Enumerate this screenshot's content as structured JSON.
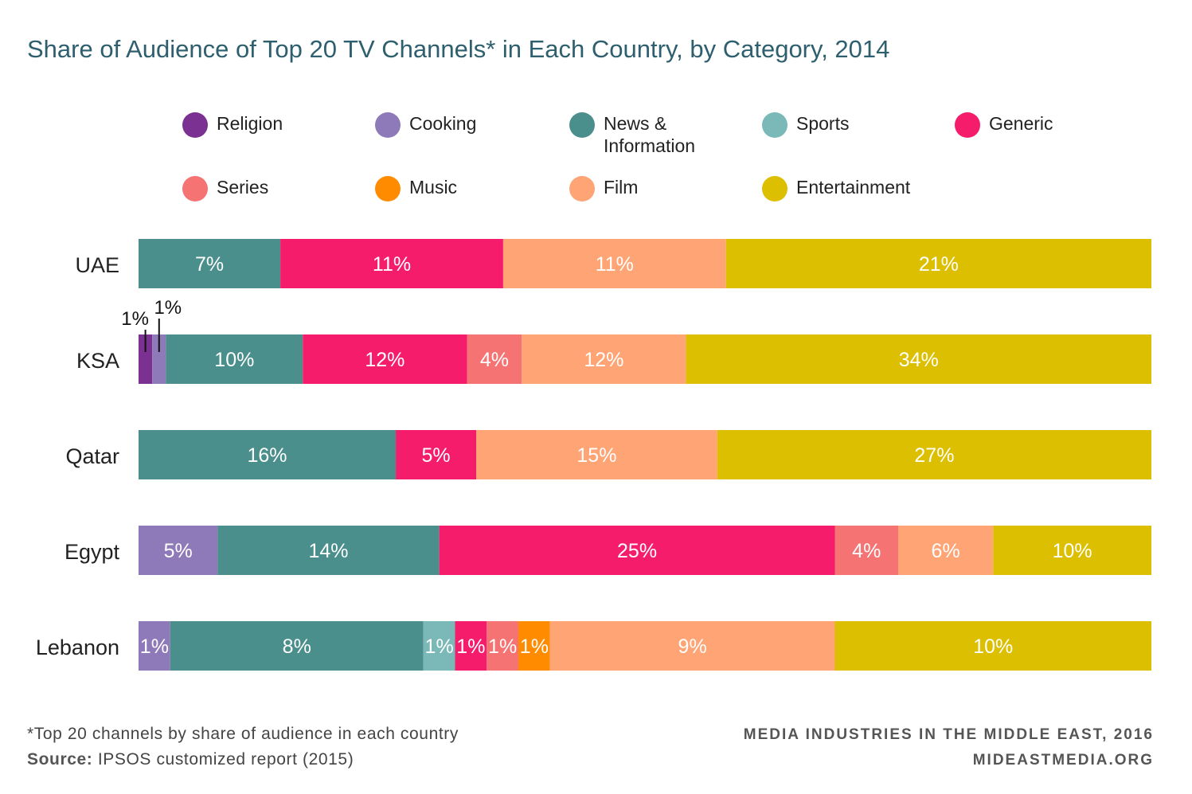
{
  "chart_data": {
    "type": "bar",
    "orientation": "horizontal",
    "stacked": true,
    "title": "Share of Audience of Top 20 TV Channels* in Each Country, by Category, 2014",
    "categories": [
      "UAE",
      "KSA",
      "Qatar",
      "Egypt",
      "Lebanon"
    ],
    "series": [
      {
        "name": "Religion",
        "color": "#7a3191",
        "values": [
          0,
          1,
          0,
          0,
          0
        ],
        "labels": [
          "",
          "1%",
          "",
          "",
          ""
        ]
      },
      {
        "name": "Cooking",
        "color": "#8e7ab8",
        "values": [
          0,
          1,
          0,
          5,
          1
        ],
        "labels": [
          "",
          "1%",
          "",
          "5%",
          "1%"
        ]
      },
      {
        "name": "News & Information",
        "color": "#4a8f8c",
        "values": [
          7,
          10,
          16,
          14,
          8
        ],
        "labels": [
          "7%",
          "10%",
          "16%",
          "14%",
          "8%"
        ]
      },
      {
        "name": "Sports",
        "color": "#7ab9b8",
        "values": [
          0,
          0,
          0,
          0,
          1
        ],
        "labels": [
          "",
          "",
          "",
          "",
          "1%"
        ]
      },
      {
        "name": "Generic",
        "color": "#f51d6b",
        "values": [
          11,
          12,
          5,
          25,
          1
        ],
        "labels": [
          "11%",
          "12%",
          "5%",
          "25%",
          "1%"
        ]
      },
      {
        "name": "Series",
        "color": "#f57373",
        "values": [
          0,
          4,
          0,
          4,
          1
        ],
        "labels": [
          "",
          "4%",
          "",
          "4%",
          "1%"
        ]
      },
      {
        "name": "Music",
        "color": "#ff8c00",
        "values": [
          0,
          0,
          0,
          0,
          1
        ],
        "labels": [
          "",
          "",
          "",
          "",
          "1%"
        ]
      },
      {
        "name": "Film",
        "color": "#ffa474",
        "values": [
          11,
          12,
          15,
          6,
          9
        ],
        "labels": [
          "11%",
          "12%",
          "15%",
          "6%",
          "9%"
        ]
      },
      {
        "name": "Entertainment",
        "color": "#dcbf00",
        "values": [
          21,
          34,
          27,
          10,
          10
        ],
        "labels": [
          "21%",
          "34%",
          "27%",
          "10%",
          "10%"
        ]
      }
    ],
    "legend": {
      "placement": "top",
      "rows": [
        [
          "Religion",
          "Cooking",
          "News & Information",
          "Sports",
          "Generic"
        ],
        [
          "Series",
          "Music",
          "Film",
          "Entertainment"
        ]
      ]
    },
    "outside_labels": [
      {
        "category": "KSA",
        "series": "Religion",
        "text": "1%"
      },
      {
        "category": "KSA",
        "series": "Cooking",
        "text": "1%"
      }
    ],
    "grid": false
  },
  "legend_labels": {
    "religion": "Religion",
    "cooking": "Cooking",
    "news1": "News &",
    "news2": "Information",
    "sports": "Sports",
    "generic": "Generic",
    "series": "Series",
    "music": "Music",
    "film": "Film",
    "entertainment": "Entertainment"
  },
  "footer": {
    "note": "*Top 20 channels by share of audience in each country",
    "source_label": "Source:",
    "source_text": " IPSOS customized report (2015)",
    "publication": "MEDIA INDUSTRIES IN THE MIDDLE EAST, 2016",
    "site": "MIDEASTMEDIA.ORG"
  }
}
